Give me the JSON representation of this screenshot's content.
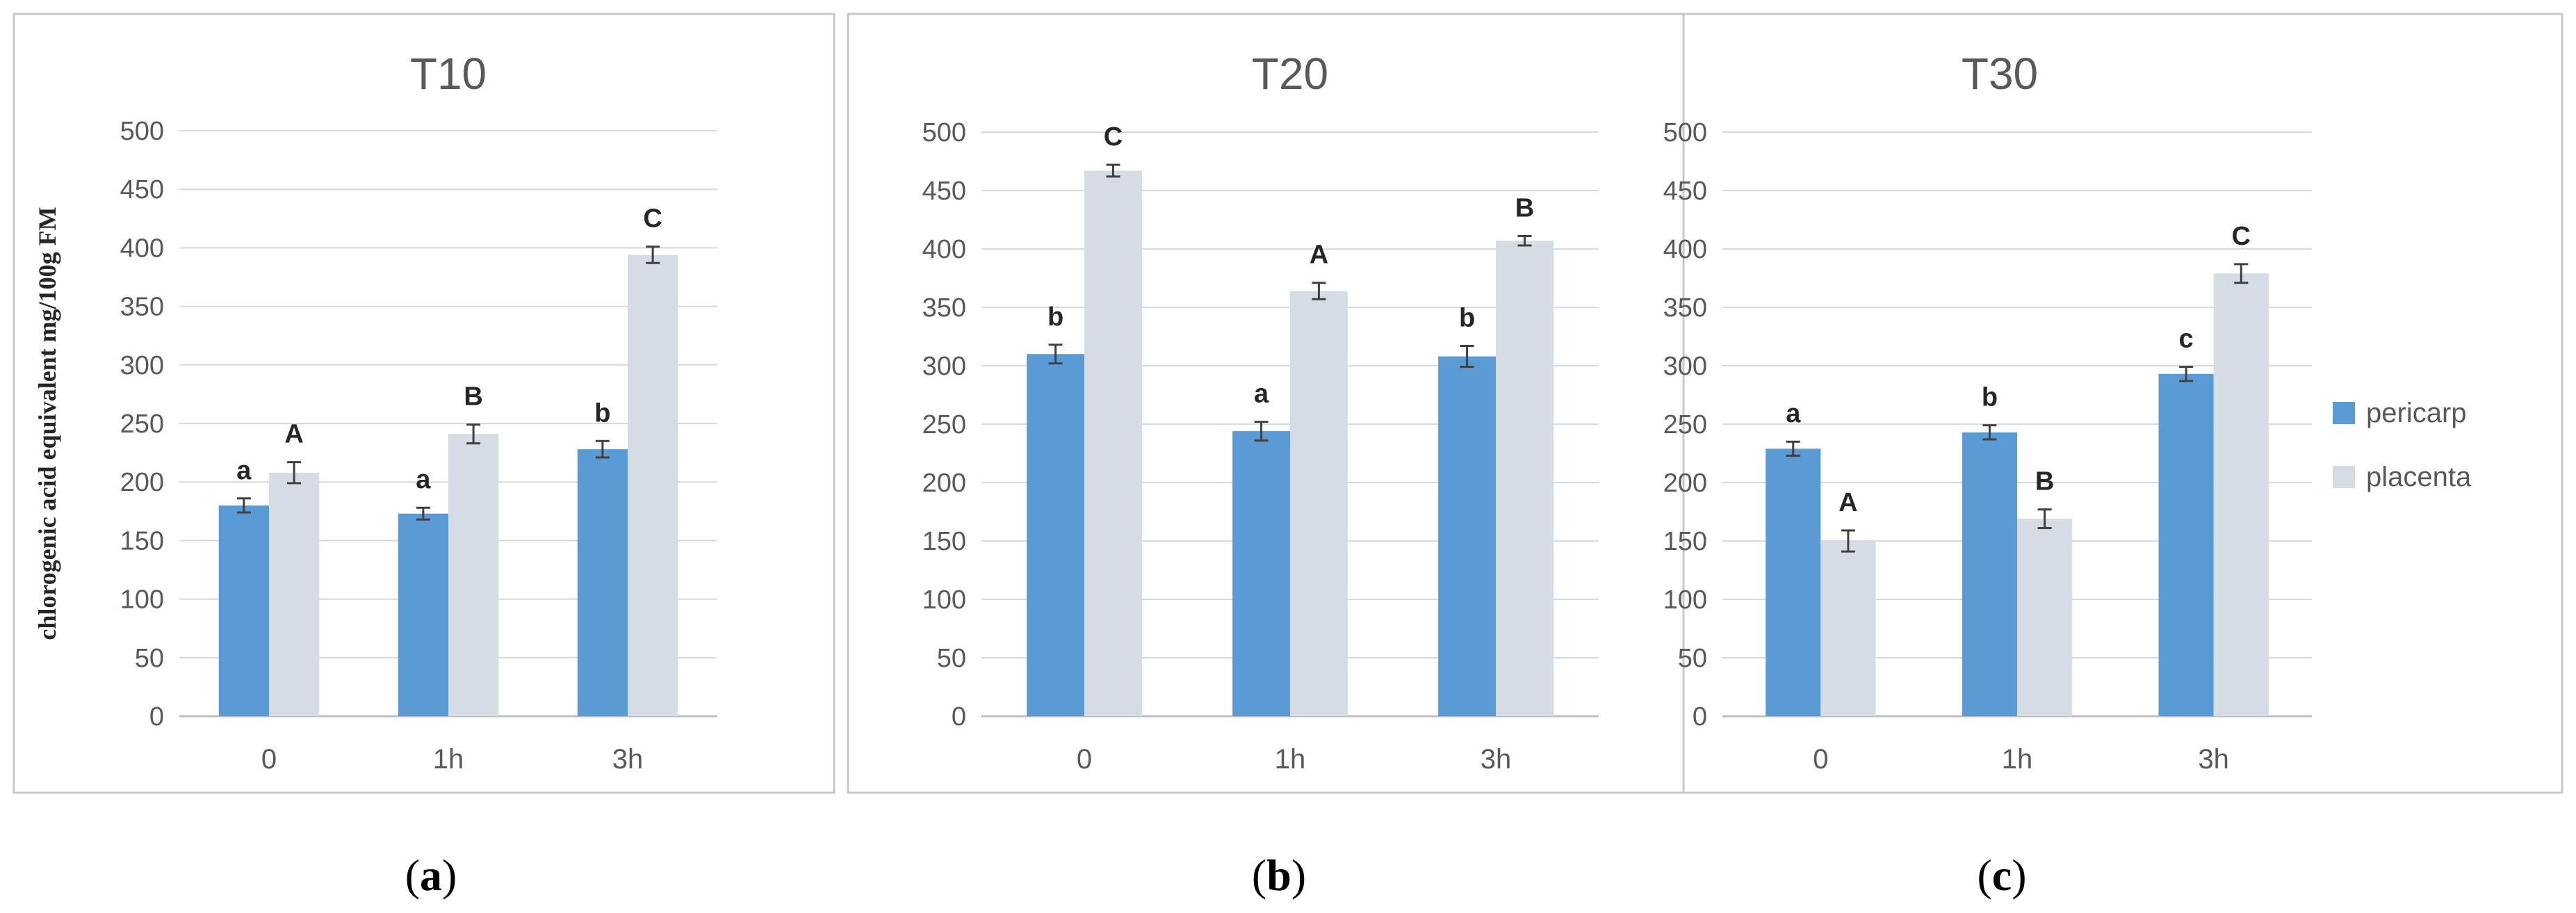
{
  "chart_data": [
    {
      "type": "bar",
      "title": "T10",
      "ylabel": "chlorogenic acid equivalent mg/100g FM",
      "ylim": [
        0,
        500
      ],
      "yticks": [
        0,
        50,
        100,
        150,
        200,
        250,
        300,
        350,
        400,
        450,
        500
      ],
      "categories": [
        "0",
        "1h",
        "3h"
      ],
      "series": [
        {
          "name": "pericarp",
          "values": [
            180,
            173,
            228
          ],
          "errors": [
            6,
            5,
            7
          ],
          "letters": [
            "a",
            "a",
            "b"
          ]
        },
        {
          "name": "placenta",
          "values": [
            208,
            241,
            394
          ],
          "errors": [
            9,
            8,
            7
          ],
          "letters": [
            "A",
            "B",
            "C"
          ]
        }
      ],
      "panel_label": "(a)",
      "grid": true
    },
    {
      "type": "bar",
      "title": "T20",
      "ylim": [
        0,
        500
      ],
      "yticks": [
        0,
        50,
        100,
        150,
        200,
        250,
        300,
        350,
        400,
        450,
        500
      ],
      "categories": [
        "0",
        "1h",
        "3h"
      ],
      "series": [
        {
          "name": "pericarp",
          "values": [
            310,
            244,
            308
          ],
          "errors": [
            8,
            8,
            9
          ],
          "letters": [
            "b",
            "a",
            "b"
          ]
        },
        {
          "name": "placenta",
          "values": [
            467,
            364,
            407
          ],
          "errors": [
            5,
            7,
            4
          ],
          "letters": [
            "C",
            "A",
            "B"
          ]
        }
      ],
      "panel_label": "(b)",
      "grid": true
    },
    {
      "type": "bar",
      "title": "T30",
      "ylim": [
        0,
        500
      ],
      "yticks": [
        0,
        50,
        100,
        150,
        200,
        250,
        300,
        350,
        400,
        450,
        500
      ],
      "categories": [
        "0",
        "1h",
        "3h"
      ],
      "series": [
        {
          "name": "pericarp",
          "values": [
            229,
            243,
            293
          ],
          "errors": [
            6,
            6,
            6
          ],
          "letters": [
            "a",
            "b",
            "c"
          ]
        },
        {
          "name": "placenta",
          "values": [
            150,
            169,
            379
          ],
          "errors": [
            9,
            8,
            8
          ],
          "letters": [
            "A",
            "B",
            "C"
          ]
        }
      ],
      "panel_label": "(c)",
      "legend": {
        "position": "right",
        "entries": [
          "pericarp",
          "placenta"
        ]
      },
      "grid": true
    }
  ],
  "colors": {
    "pericarp": "#5b9bd5",
    "placenta": "#d6dce4",
    "grid": "#d9d9d9",
    "axis": "#bfbfbf",
    "border": "#c8c8c8",
    "text": "#595959"
  }
}
